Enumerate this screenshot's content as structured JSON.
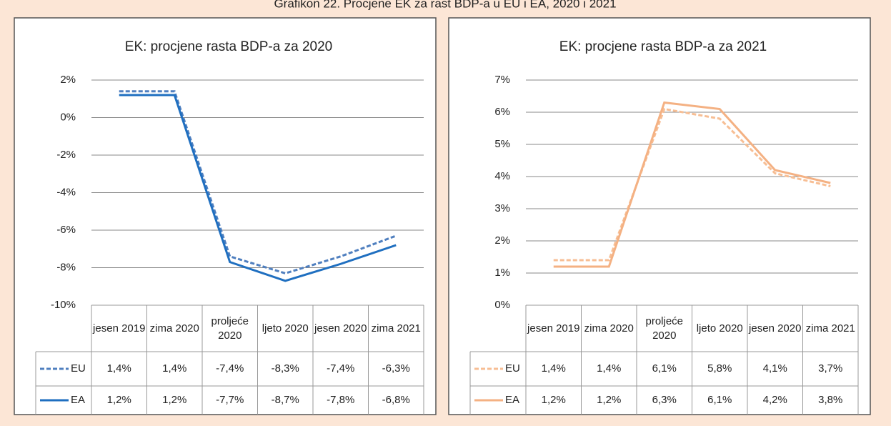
{
  "title": "Grafikon 22. Procjene EK za rast BDP-a u EU i EA, 2020 i 2021",
  "chart_data": [
    {
      "type": "line",
      "title": "EK: procjene rasta BDP-a za 2020",
      "categories": [
        "jesen 2019",
        "zima 2020",
        "proljeće 2020",
        "ljeto 2020",
        "jesen 2020",
        "zima 2021"
      ],
      "ylim": [
        -10,
        2
      ],
      "yticks": [
        {
          "value": 2,
          "label": "2%"
        },
        {
          "value": 0,
          "label": "0%"
        },
        {
          "value": -2,
          "label": "-2%"
        },
        {
          "value": -4,
          "label": "-4%"
        },
        {
          "value": -6,
          "label": "-6%"
        },
        {
          "value": -8,
          "label": "-8%"
        },
        {
          "value": -10,
          "label": "-10%"
        }
      ],
      "grid": true,
      "series": [
        {
          "name": "EU",
          "color": "#4f7fbf",
          "line_style": "dashed",
          "values": [
            1.4,
            1.4,
            -7.4,
            -8.3,
            -7.4,
            -6.3
          ],
          "value_labels": [
            "1,4%",
            "1,4%",
            "-7,4%",
            "-8,3%",
            "-7,4%",
            "-6,3%"
          ]
        },
        {
          "name": "EA",
          "color": "#1f6fc0",
          "line_style": "solid",
          "values": [
            1.2,
            1.2,
            -7.7,
            -8.7,
            -7.8,
            -6.8
          ],
          "value_labels": [
            "1,2%",
            "1,2%",
            "-7,7%",
            "-8,7%",
            "-7,8%",
            "-6,8%"
          ]
        }
      ]
    },
    {
      "type": "line",
      "title": "EK: procjene rasta BDP-a za 2021",
      "categories": [
        "jesen 2019",
        "zima 2020",
        "proljeće 2020",
        "ljeto 2020",
        "jesen 2020",
        "zima 2021"
      ],
      "ylim": [
        0,
        7
      ],
      "yticks": [
        {
          "value": 7,
          "label": "7%"
        },
        {
          "value": 6,
          "label": "6%"
        },
        {
          "value": 5,
          "label": "5%"
        },
        {
          "value": 4,
          "label": "4%"
        },
        {
          "value": 3,
          "label": "3%"
        },
        {
          "value": 2,
          "label": "2%"
        },
        {
          "value": 1,
          "label": "1%"
        },
        {
          "value": 0,
          "label": "0%"
        }
      ],
      "grid": true,
      "series": [
        {
          "name": "EU",
          "color": "#f7be94",
          "line_style": "dashed",
          "values": [
            1.4,
            1.4,
            6.1,
            5.8,
            4.1,
            3.7
          ],
          "value_labels": [
            "1,4%",
            "1,4%",
            "6,1%",
            "5,8%",
            "4,1%",
            "3,7%"
          ]
        },
        {
          "name": "EA",
          "color": "#f4b183",
          "line_style": "solid",
          "values": [
            1.2,
            1.2,
            6.3,
            6.1,
            4.2,
            3.8
          ],
          "value_labels": [
            "1,2%",
            "1,2%",
            "6,3%",
            "6,1%",
            "4,2%",
            "3,8%"
          ]
        }
      ]
    }
  ]
}
